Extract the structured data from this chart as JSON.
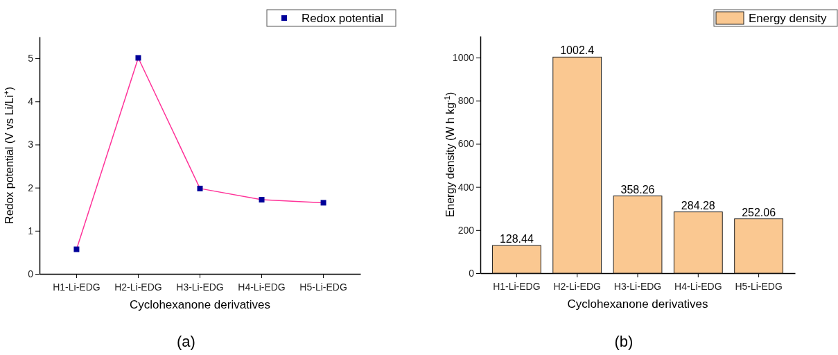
{
  "chart_data": [
    {
      "type": "line",
      "xlabel": "Cyclohexanone derivatives",
      "ylabel": "Redox potential (V vs Li/Li$^{+}$)",
      "categories": [
        "H1-Li-EDG",
        "H2-Li-EDG",
        "H3-Li-EDG",
        "H4-Li-EDG",
        "H5-Li-EDG"
      ],
      "series": [
        {
          "name": "Redox potential",
          "color": "#ff3399",
          "colors": [
            "#000099",
            "#000099",
            "#000099",
            "#000099",
            "#000099"
          ],
          "values": [
            0.57,
            5.01,
            1.98,
            1.72,
            1.65
          ]
        }
      ],
      "ylim": [
        0,
        5.5
      ],
      "yticks": [
        0,
        1,
        2,
        3,
        4,
        5
      ],
      "marker": "square",
      "legend": "top right",
      "grid": false,
      "annotations": [
        "(a)"
      ]
    },
    {
      "type": "bar",
      "xlabel": "Cyclohexanone derivatives",
      "ylabel": "Energy density (W h kg$^{-1}$)",
      "categories": [
        "H1-Li-EDG",
        "H2-Li-EDG",
        "H3-Li-EDG",
        "H4-Li-EDG",
        "H5-Li-EDG"
      ],
      "series": [
        {
          "name": "Energy density",
          "color": "#fac891",
          "values": [
            128.44,
            1002.4,
            358.26,
            284.28,
            252.06
          ]
        }
      ],
      "ylim": [
        0,
        1100
      ],
      "yticks": [
        0,
        200,
        400,
        600,
        800,
        1000
      ],
      "data_labels": true,
      "legend": "top right",
      "grid": false,
      "annotations": [
        "(b)"
      ]
    }
  ]
}
